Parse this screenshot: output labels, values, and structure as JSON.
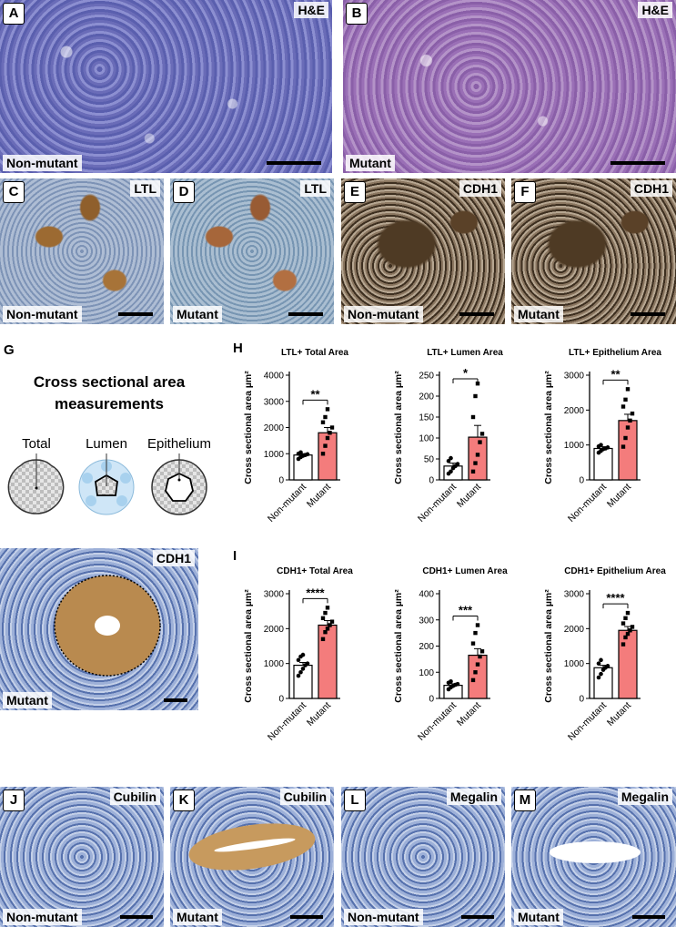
{
  "panels": {
    "A": {
      "letter": "A",
      "stain": "H&E",
      "genotype": "Non-mutant"
    },
    "B": {
      "letter": "B",
      "stain": "H&E",
      "genotype": "Mutant"
    },
    "C": {
      "letter": "C",
      "stain": "LTL",
      "genotype": "Non-mutant"
    },
    "D": {
      "letter": "D",
      "stain": "LTL",
      "genotype": "Mutant"
    },
    "E": {
      "letter": "E",
      "stain": "CDH1",
      "genotype": "Non-mutant"
    },
    "F": {
      "letter": "F",
      "stain": "CDH1",
      "genotype": "Mutant"
    },
    "G": {
      "letter": "G",
      "title": "Cross sectional area measurements",
      "labels": [
        "Total",
        "Lumen",
        "Epithelium"
      ],
      "photo_stain": "CDH1",
      "photo_genotype": "Mutant"
    },
    "H": {
      "letter": "H"
    },
    "I": {
      "letter": "I"
    },
    "J": {
      "letter": "J",
      "stain": "Cubilin",
      "genotype": "Non-mutant"
    },
    "K": {
      "letter": "K",
      "stain": "Cubilin",
      "genotype": "Mutant"
    },
    "L": {
      "letter": "L",
      "stain": "Megalin",
      "genotype": "Non-mutant"
    },
    "M": {
      "letter": "M",
      "stain": "Megalin",
      "genotype": "Mutant"
    }
  },
  "colors": {
    "mutant_bar": "#f47c7c",
    "nonmutant_bar": "#ffffff"
  },
  "chart_data": [
    {
      "type": "bar",
      "title": "LTL+ Total Area",
      "ylabel": "Cross sectional area µm²",
      "categories": [
        "Non-mutant",
        "Mutant"
      ],
      "values": [
        950,
        1800
      ],
      "errors": [
        50,
        200
      ],
      "ylim": [
        0,
        4000
      ],
      "yticks": [
        0,
        1000,
        2000,
        3000,
        4000
      ],
      "significance": "**",
      "points": [
        [
          800,
          870,
          920,
          950,
          980,
          1000,
          1050
        ],
        [
          1000,
          1300,
          1600,
          1800,
          2000,
          2200,
          2400,
          2700
        ]
      ]
    },
    {
      "type": "bar",
      "title": "LTL+ Lumen  Area",
      "ylabel": "Cross sectional area µm²",
      "categories": [
        "Non-mutant",
        "Mutant"
      ],
      "values": [
        33,
        102
      ],
      "errors": [
        7,
        28
      ],
      "ylim": [
        0,
        250
      ],
      "yticks": [
        0,
        50,
        100,
        150,
        200,
        250
      ],
      "significance": "*",
      "points": [
        [
          15,
          20,
          28,
          33,
          38,
          45,
          52
        ],
        [
          20,
          40,
          60,
          90,
          110,
          150,
          200,
          230
        ]
      ]
    },
    {
      "type": "bar",
      "title": "LTL+ Epithelium Area",
      "ylabel": "Cross sectional area µm²",
      "categories": [
        "Non-mutant",
        "Mutant"
      ],
      "values": [
        900,
        1700
      ],
      "errors": [
        50,
        180
      ],
      "ylim": [
        0,
        3000
      ],
      "yticks": [
        0,
        1000,
        2000,
        3000
      ],
      "significance": "**",
      "points": [
        [
          780,
          830,
          880,
          900,
          930,
          960,
          1000
        ],
        [
          950,
          1200,
          1500,
          1700,
          1900,
          2100,
          2300,
          2600
        ]
      ]
    },
    {
      "type": "bar",
      "title": "CDH1+ Total Area",
      "ylabel": "Cross sectional area µm²",
      "categories": [
        "Non-mutant",
        "Mutant"
      ],
      "values": [
        950,
        2100
      ],
      "errors": [
        80,
        130
      ],
      "ylim": [
        0,
        3000
      ],
      "yticks": [
        0,
        1000,
        2000,
        3000
      ],
      "significance": "****",
      "points": [
        [
          650,
          750,
          850,
          950,
          1000,
          1100,
          1200,
          1250
        ],
        [
          1700,
          1900,
          2000,
          2100,
          2200,
          2300,
          2450,
          2600
        ]
      ]
    },
    {
      "type": "bar",
      "title": "CDH1+ Lumen Area",
      "ylabel": "Cross sectional area µm²",
      "categories": [
        "Non-mutant",
        "Mutant"
      ],
      "values": [
        50,
        165
      ],
      "errors": [
        6,
        25
      ],
      "ylim": [
        0,
        400
      ],
      "yticks": [
        0,
        100,
        200,
        300,
        400
      ],
      "significance": "***",
      "points": [
        [
          35,
          42,
          48,
          52,
          55,
          60,
          65
        ],
        [
          70,
          100,
          130,
          160,
          180,
          210,
          250,
          280
        ]
      ]
    },
    {
      "type": "bar",
      "title": "CDH1+ Epithelium Area",
      "ylabel": "Cross sectional area µm²",
      "categories": [
        "Non-mutant",
        "Mutant"
      ],
      "values": [
        880,
        1950
      ],
      "errors": [
        70,
        110
      ],
      "ylim": [
        0,
        3000
      ],
      "yticks": [
        0,
        1000,
        2000,
        3000
      ],
      "significance": "****",
      "points": [
        [
          600,
          700,
          820,
          880,
          930,
          1000,
          1100
        ],
        [
          1550,
          1750,
          1850,
          1950,
          2050,
          2150,
          2300,
          2450
        ]
      ]
    }
  ]
}
